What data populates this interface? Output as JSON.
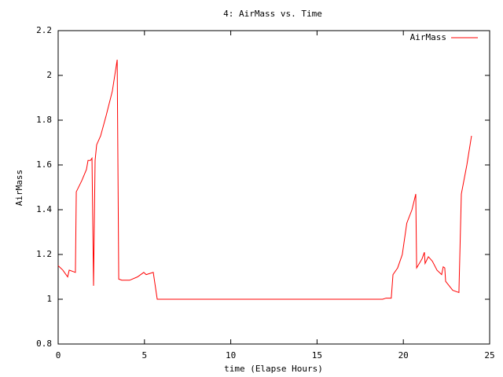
{
  "chart_data": {
    "type": "line",
    "title": "4: AirMass vs. Time",
    "xlabel": "time (Elapse Hours)",
    "ylabel": "AirMass",
    "x": [
      0,
      0.27,
      0.55,
      0.64,
      1.0,
      1.05,
      1.37,
      1.64,
      1.73,
      1.87,
      1.96,
      2.05,
      2.14,
      2.23,
      2.46,
      2.78,
      3.14,
      3.42,
      3.51,
      3.69,
      4.14,
      4.6,
      4.96,
      5.1,
      5.51,
      5.74,
      18.8,
      19.0,
      19.3,
      19.4,
      19.67,
      19.94,
      20.2,
      20.5,
      20.72,
      20.77,
      21.08,
      21.22,
      21.26,
      21.45,
      21.68,
      21.95,
      22.22,
      22.31,
      22.4,
      22.45,
      22.86,
      23.22,
      23.36,
      23.68,
      23.95
    ],
    "series": [
      {
        "name": "AirMass",
        "color": "#ff0000",
        "values": [
          1.15,
          1.13,
          1.1,
          1.13,
          1.12,
          1.48,
          1.53,
          1.58,
          1.62,
          1.62,
          1.63,
          1.06,
          1.62,
          1.69,
          1.73,
          1.82,
          1.93,
          2.07,
          1.09,
          1.085,
          1.085,
          1.1,
          1.12,
          1.11,
          1.12,
          1.0,
          1.0,
          1.005,
          1.005,
          1.11,
          1.14,
          1.2,
          1.34,
          1.4,
          1.47,
          1.14,
          1.18,
          1.21,
          1.16,
          1.19,
          1.17,
          1.13,
          1.11,
          1.145,
          1.14,
          1.08,
          1.04,
          1.03,
          1.47,
          1.6,
          1.73
        ]
      }
    ],
    "xlim": [
      0,
      25
    ],
    "xticks": [
      0,
      5,
      10,
      15,
      20,
      25
    ],
    "ylim": [
      0.8,
      2.2
    ],
    "yticks": [
      0.8,
      1,
      1.2,
      1.4,
      1.6,
      1.8,
      2,
      2.2
    ],
    "legend": "top-right"
  }
}
